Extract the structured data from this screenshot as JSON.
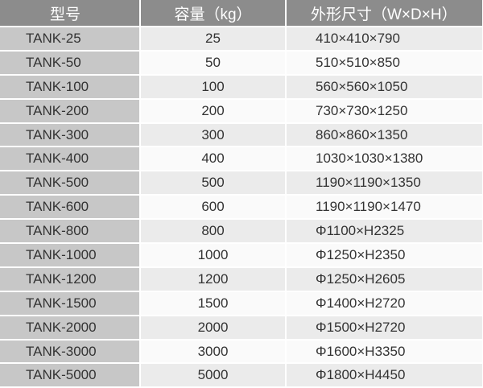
{
  "headers": [
    "型号",
    "容量（kg）",
    "外形尺寸（W×D×H）"
  ],
  "rows": [
    [
      "TANK-25",
      "25",
      "410×410×790"
    ],
    [
      "TANK-50",
      "50",
      "510×510×850"
    ],
    [
      "TANK-100",
      "100",
      "560×560×1050"
    ],
    [
      "TANK-200",
      "200",
      "730×730×1250"
    ],
    [
      "TANK-300",
      "300",
      "860×860×1350"
    ],
    [
      "TANK-400",
      "400",
      "1030×1030×1380"
    ],
    [
      "TANK-500",
      "500",
      "1190×1190×1350"
    ],
    [
      "TANK-600",
      "600",
      "1190×1190×1470"
    ],
    [
      "TANK-800",
      "800",
      "Φ1100×H2325"
    ],
    [
      "TANK-1000",
      "1000",
      "Φ1250×H2350"
    ],
    [
      "TANK-1200",
      "1200",
      "Φ1250×H2605"
    ],
    [
      "TANK-1500",
      "1500",
      "Φ1400×H2720"
    ],
    [
      "TANK-2000",
      "2000",
      "Φ1500×H2720"
    ],
    [
      "TANK-3000",
      "3000",
      "Φ1600×H3350"
    ],
    [
      "TANK-5000",
      "5000",
      "Φ1800×H4450"
    ]
  ]
}
